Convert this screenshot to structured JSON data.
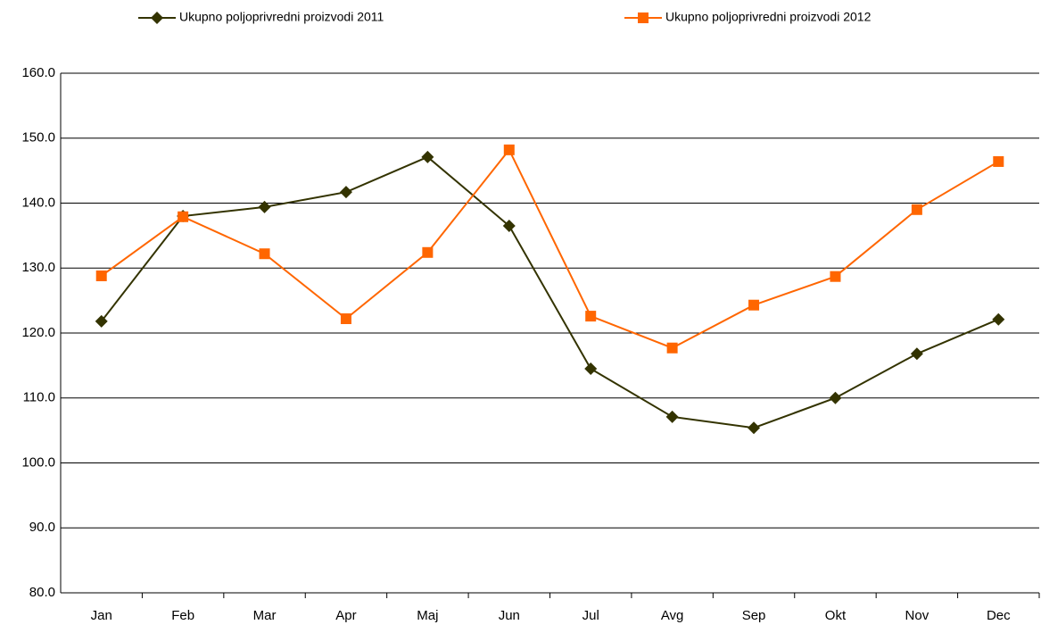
{
  "chart_data": {
    "type": "line",
    "categories": [
      "Jan",
      "Feb",
      "Mar",
      "Apr",
      "Maj",
      "Jun",
      "Jul",
      "Avg",
      "Sep",
      "Okt",
      "Nov",
      "Dec"
    ],
    "series": [
      {
        "name": "Ukupno poljoprivredni proizvodi  2011",
        "color": "#333300",
        "marker": "diamond",
        "values": [
          121.8,
          138.0,
          139.4,
          141.7,
          147.1,
          136.5,
          114.5,
          107.1,
          105.4,
          110.0,
          116.8,
          122.1
        ]
      },
      {
        "name": "Ukupno poljoprivredni proizvodi  2012",
        "color": "#ff6600",
        "marker": "square",
        "values": [
          128.8,
          137.9,
          132.2,
          122.2,
          132.4,
          148.2,
          122.6,
          117.7,
          124.3,
          128.7,
          139.0,
          146.4
        ]
      }
    ],
    "ylim": [
      80,
      160
    ],
    "yticks": [
      {
        "value": 80,
        "label": "80.0"
      },
      {
        "value": 90,
        "label": "90.0"
      },
      {
        "value": 100,
        "label": "100.0"
      },
      {
        "value": 110,
        "label": "110.0"
      },
      {
        "value": 120,
        "label": "120.0"
      },
      {
        "value": 130,
        "label": "130.0"
      },
      {
        "value": 140,
        "label": "140.0"
      },
      {
        "value": 150,
        "label": "150.0"
      },
      {
        "value": 160,
        "label": "160.0"
      }
    ],
    "grid": true,
    "legend": "top"
  }
}
